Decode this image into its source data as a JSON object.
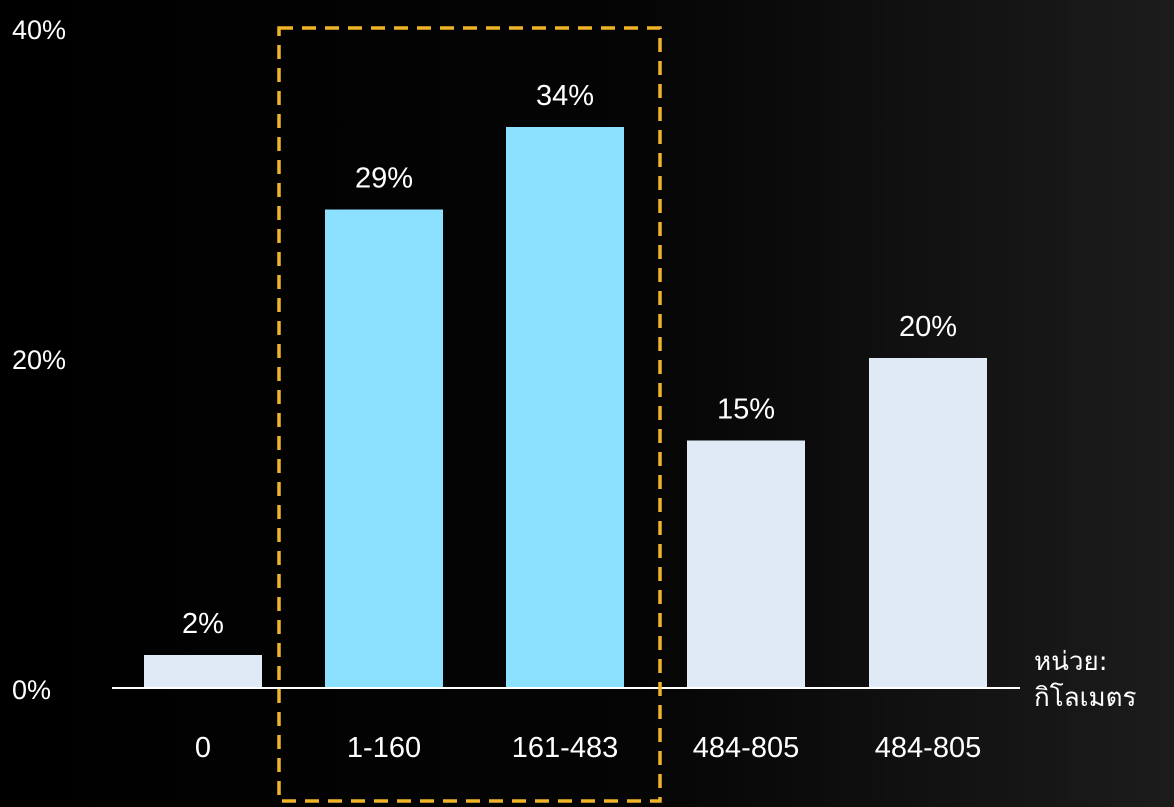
{
  "chart_data": {
    "type": "bar",
    "categories": [
      "0",
      "1-160",
      "161-483",
      "484-805",
      "484-805"
    ],
    "values": [
      2,
      29,
      34,
      15,
      20
    ],
    "data_labels": [
      "2%",
      "29%",
      "34%",
      "15%",
      "20%"
    ],
    "highlighted_categories": [
      1,
      2
    ],
    "ylim": [
      0,
      40
    ],
    "yticks": [
      {
        "value": 0,
        "label": "0%"
      },
      {
        "value": 20,
        "label": "20%"
      },
      {
        "value": 40,
        "label": "40%"
      }
    ],
    "grid": false,
    "unit_label": {
      "line1": "หน่วย:",
      "line2": "กิโลเมตร"
    },
    "highlight_box": "dashed rectangle around categories 1-160 and 161-483",
    "colors": {
      "highlight_bar": "#8be1ff",
      "normal_bar": "#dfeaf6",
      "highlight_box": "#f0b428",
      "text": "#ffffff",
      "axis": "#ffffff",
      "background": "#000000"
    }
  }
}
